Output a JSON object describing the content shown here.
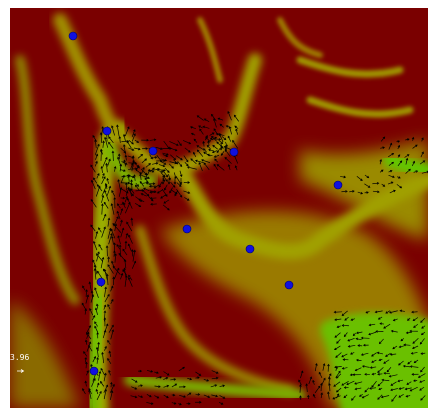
{
  "scale_label": "3.96"
}
